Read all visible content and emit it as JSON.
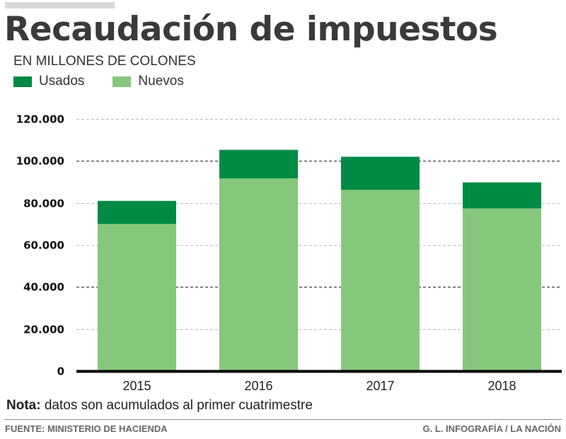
{
  "colors": {
    "usados": "#008a44",
    "nuevos": "#85c87c",
    "title": "#3a3a3a",
    "axis": "#000000"
  },
  "chart_data": {
    "type": "bar",
    "stacked": true,
    "title": "Recaudación de impuestos",
    "subtitle": "EN MILLONES DE COLONES",
    "xlabel": "",
    "ylabel": "",
    "categories": [
      "2015",
      "2016",
      "2017",
      "2018"
    ],
    "series": [
      {
        "name": "Nuevos",
        "color": "#85c87c",
        "values": [
          70000,
          91700,
          86300,
          77400
        ]
      },
      {
        "name": "Usados",
        "color": "#008a44",
        "values": [
          11000,
          13600,
          15700,
          12400
        ]
      }
    ],
    "legend_order": [
      "Usados",
      "Nuevos"
    ],
    "legend_position": "top-left",
    "ylim": [
      0,
      120000
    ],
    "yticks": [
      0,
      20000,
      40000,
      60000,
      80000,
      100000,
      120000
    ],
    "ytick_labels": [
      "0",
      "20.000",
      "40.000",
      "60.000",
      "80.000",
      "100.000",
      "120.000"
    ],
    "grid": true
  },
  "note": {
    "label": "Nota:",
    "text": " datos son acumulados al primer cuatrimestre"
  },
  "footer": {
    "source": "FUENTE: MINISTERIO DE HACIENDA",
    "credit": "G. L. INFOGRAFÍA / LA NACIÓN"
  }
}
